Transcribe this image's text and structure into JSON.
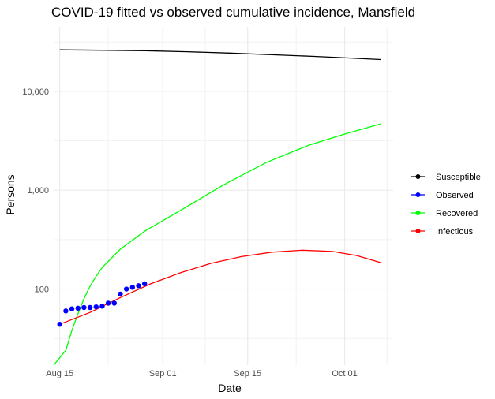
{
  "chart_data": {
    "type": "line",
    "title": "COVID-19 fitted vs observed cumulative incidence, Mansfield",
    "xlabel": "Date",
    "ylabel": "Persons",
    "y_scale": "log10",
    "ylim": [
      17,
      45000
    ],
    "xlim": [
      "2020-08-14",
      "2020-10-09"
    ],
    "x_ticks": [
      {
        "date": "2020-08-15",
        "label": "Aug 15"
      },
      {
        "date": "2020-09-01",
        "label": "Sep 01"
      },
      {
        "date": "2020-09-15",
        "label": "Sep 15"
      },
      {
        "date": "2020-10-01",
        "label": "Oct 01"
      }
    ],
    "x_minor_ticks": [
      "2020-08-23",
      "2020-09-08",
      "2020-09-23",
      "2020-10-08"
    ],
    "y_ticks": [
      {
        "value": 100,
        "label": "100"
      },
      {
        "value": 1000,
        "label": "1,000"
      },
      {
        "value": 10000,
        "label": "10,000"
      }
    ],
    "y_minor_ticks": [
      31.6,
      316,
      3162,
      31623
    ],
    "grid": true,
    "legend_position": "right",
    "series": [
      {
        "name": "Susceptible",
        "kind": "line",
        "color": "#000000",
        "x": [
          "2020-08-15",
          "2020-08-22",
          "2020-08-29",
          "2020-09-05",
          "2020-09-12",
          "2020-09-19",
          "2020-09-26",
          "2020-10-03",
          "2020-10-07"
        ],
        "y": [
          26300,
          26100,
          25800,
          25200,
          24400,
          23500,
          22600,
          21600,
          21000
        ]
      },
      {
        "name": "Observed",
        "kind": "points",
        "color": "#0000ff",
        "x": [
          "2020-08-15",
          "2020-08-16",
          "2020-08-17",
          "2020-08-18",
          "2020-08-19",
          "2020-08-20",
          "2020-08-21",
          "2020-08-22",
          "2020-08-23",
          "2020-08-24",
          "2020-08-25",
          "2020-08-26",
          "2020-08-27",
          "2020-08-28",
          "2020-08-29"
        ],
        "y": [
          44,
          60,
          63,
          64,
          65,
          65,
          66,
          67,
          72,
          72,
          89,
          100,
          104,
          108,
          113
        ]
      },
      {
        "name": "Recovered",
        "kind": "line",
        "color": "#00ff00",
        "x": [
          "2020-08-14",
          "2020-08-16",
          "2020-08-17",
          "2020-08-18",
          "2020-08-19",
          "2020-08-20",
          "2020-08-21",
          "2020-08-22",
          "2020-08-25",
          "2020-08-29",
          "2020-09-04",
          "2020-09-11",
          "2020-09-18",
          "2020-09-25",
          "2020-10-01",
          "2020-10-07"
        ],
        "y": [
          17,
          24,
          38,
          56,
          80,
          107,
          135,
          165,
          253,
          385,
          630,
          1130,
          1900,
          2840,
          3700,
          4700
        ]
      },
      {
        "name": "Infectious",
        "kind": "line",
        "color": "#ff0000",
        "x": [
          "2020-08-15",
          "2020-08-20",
          "2020-08-25",
          "2020-08-30",
          "2020-09-04",
          "2020-09-09",
          "2020-09-14",
          "2020-09-19",
          "2020-09-24",
          "2020-09-29",
          "2020-10-03",
          "2020-10-07"
        ],
        "y": [
          44,
          58,
          82,
          113,
          147,
          182,
          213,
          236,
          247,
          240,
          218,
          185
        ]
      }
    ]
  }
}
